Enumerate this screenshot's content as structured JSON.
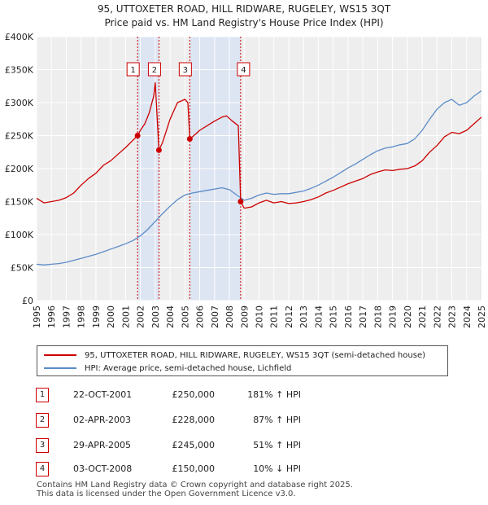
{
  "chart_data": {
    "type": "line",
    "title": "95, UTTOXETER ROAD, HILL RIDWARE, RUGELEY, WS15 3QT",
    "subtitle": "Price paid vs. HM Land Registry's House Price Index (HPI)",
    "xlim": [
      1995,
      2025
    ],
    "ylim": [
      0,
      400000
    ],
    "y_ticks": [
      0,
      50000,
      100000,
      150000,
      200000,
      250000,
      300000,
      350000,
      400000
    ],
    "y_tick_labels": [
      "£0",
      "£50K",
      "£100K",
      "£150K",
      "£200K",
      "£250K",
      "£300K",
      "£350K",
      "£400K"
    ],
    "x_ticks": [
      1995,
      1996,
      1997,
      1998,
      1999,
      2000,
      2001,
      2002,
      2003,
      2004,
      2005,
      2006,
      2007,
      2008,
      2009,
      2010,
      2011,
      2012,
      2013,
      2014,
      2015,
      2016,
      2017,
      2018,
      2019,
      2020,
      2021,
      2022,
      2023,
      2024,
      2025
    ],
    "x_tick_labels": [
      "1995",
      "1996",
      "1997",
      "1998",
      "1999",
      "2000",
      "2001",
      "2002",
      "2003",
      "2004",
      "2005",
      "2006",
      "2007",
      "2008",
      "2009",
      "2010",
      "2011",
      "2012",
      "2013",
      "2014",
      "2015",
      "2016",
      "2017",
      "2018",
      "2019",
      "2020",
      "2021",
      "2022",
      "2023",
      "2024",
      "2025"
    ],
    "grid": true,
    "series": [
      {
        "name": "95, UTTOXETER ROAD, HILL RIDWARE, RUGELEY, WS15 3QT (semi-detached house)",
        "color": "#cc0000",
        "x": [
          1995.0,
          1995.5,
          1996.0,
          1996.5,
          1997.0,
          1997.5,
          1998.0,
          1998.5,
          1999.0,
          1999.5,
          2000.0,
          2000.5,
          2001.0,
          2001.5,
          2001.81,
          2002.0,
          2002.3,
          2002.6,
          2002.9,
          2003.0,
          2003.25,
          2003.5,
          2004.0,
          2004.5,
          2005.0,
          2005.2,
          2005.33,
          2005.6,
          2006.0,
          2006.5,
          2007.0,
          2007.5,
          2007.8,
          2008.2,
          2008.6,
          2008.76,
          2009.0,
          2009.5,
          2010.0,
          2010.5,
          2011.0,
          2011.5,
          2012.0,
          2012.5,
          2013.0,
          2013.5,
          2014.0,
          2014.5,
          2015.0,
          2015.5,
          2016.0,
          2016.5,
          2017.0,
          2017.5,
          2018.0,
          2018.5,
          2019.0,
          2019.5,
          2020.0,
          2020.5,
          2021.0,
          2021.5,
          2022.0,
          2022.5,
          2023.0,
          2023.5,
          2024.0,
          2024.5,
          2025.0
        ],
        "values": [
          155000,
          148000,
          150000,
          152000,
          156000,
          163000,
          175000,
          185000,
          193000,
          205000,
          212000,
          222000,
          232000,
          243000,
          250000,
          258000,
          268000,
          285000,
          310000,
          330000,
          228000,
          240000,
          275000,
          300000,
          305000,
          300000,
          245000,
          250000,
          258000,
          265000,
          272000,
          278000,
          280000,
          272000,
          265000,
          150000,
          140000,
          142000,
          148000,
          152000,
          148000,
          150000,
          147000,
          148000,
          150000,
          153000,
          157000,
          163000,
          167000,
          172000,
          177000,
          181000,
          185000,
          191000,
          195000,
          198000,
          197000,
          199000,
          200000,
          204000,
          212000,
          225000,
          235000,
          248000,
          255000,
          253000,
          258000,
          268000,
          278000
        ]
      },
      {
        "name": "HPI: Average price, semi-detached house, Lichfield",
        "color": "#5b8cc8",
        "x": [
          1995.0,
          1995.5,
          1996.0,
          1996.5,
          1997.0,
          1997.5,
          1998.0,
          1998.5,
          1999.0,
          1999.5,
          2000.0,
          2000.5,
          2001.0,
          2001.5,
          2002.0,
          2002.5,
          2003.0,
          2003.5,
          2004.0,
          2004.5,
          2005.0,
          2005.5,
          2006.0,
          2006.5,
          2007.0,
          2007.5,
          2008.0,
          2008.5,
          2009.0,
          2009.5,
          2010.0,
          2010.5,
          2011.0,
          2011.5,
          2012.0,
          2012.5,
          2013.0,
          2013.5,
          2014.0,
          2014.5,
          2015.0,
          2015.5,
          2016.0,
          2016.5,
          2017.0,
          2017.5,
          2018.0,
          2018.5,
          2019.0,
          2019.5,
          2020.0,
          2020.5,
          2021.0,
          2021.5,
          2022.0,
          2022.5,
          2023.0,
          2023.5,
          2024.0,
          2024.5,
          2025.0
        ],
        "values": [
          55000,
          54000,
          55000,
          56000,
          58000,
          61000,
          64000,
          67000,
          70000,
          74000,
          78000,
          82000,
          86000,
          91000,
          98000,
          108000,
          120000,
          132000,
          143000,
          153000,
          160000,
          163000,
          165000,
          167000,
          169000,
          171000,
          168000,
          160000,
          152000,
          155000,
          160000,
          163000,
          161000,
          162000,
          162000,
          164000,
          166000,
          170000,
          175000,
          181000,
          187000,
          194000,
          201000,
          207000,
          214000,
          221000,
          227000,
          231000,
          233000,
          236000,
          238000,
          245000,
          258000,
          275000,
          290000,
          300000,
          305000,
          296000,
          300000,
          310000,
          318000
        ]
      }
    ],
    "transactions": [
      {
        "label": "1",
        "x": 2001.81,
        "price": 250000,
        "date": "22-OCT-2001",
        "price_text": "£250,000",
        "hpi": "181% ↑ HPI"
      },
      {
        "label": "2",
        "x": 2003.25,
        "price": 228000,
        "date": "02-APR-2003",
        "price_text": "£228,000",
        "hpi": "87% ↑ HPI"
      },
      {
        "label": "3",
        "x": 2005.33,
        "price": 245000,
        "date": "29-APR-2005",
        "price_text": "£245,000",
        "hpi": "51% ↑ HPI"
      },
      {
        "label": "4",
        "x": 2008.76,
        "price": 150000,
        "date": "03-OCT-2008",
        "price_text": "£150,000",
        "hpi": "10% ↓ HPI"
      }
    ]
  },
  "footer": {
    "line1": "Contains HM Land Registry data © Crown copyright and database right 2025.",
    "line2": "This data is licensed under the Open Government Licence v3.0."
  }
}
